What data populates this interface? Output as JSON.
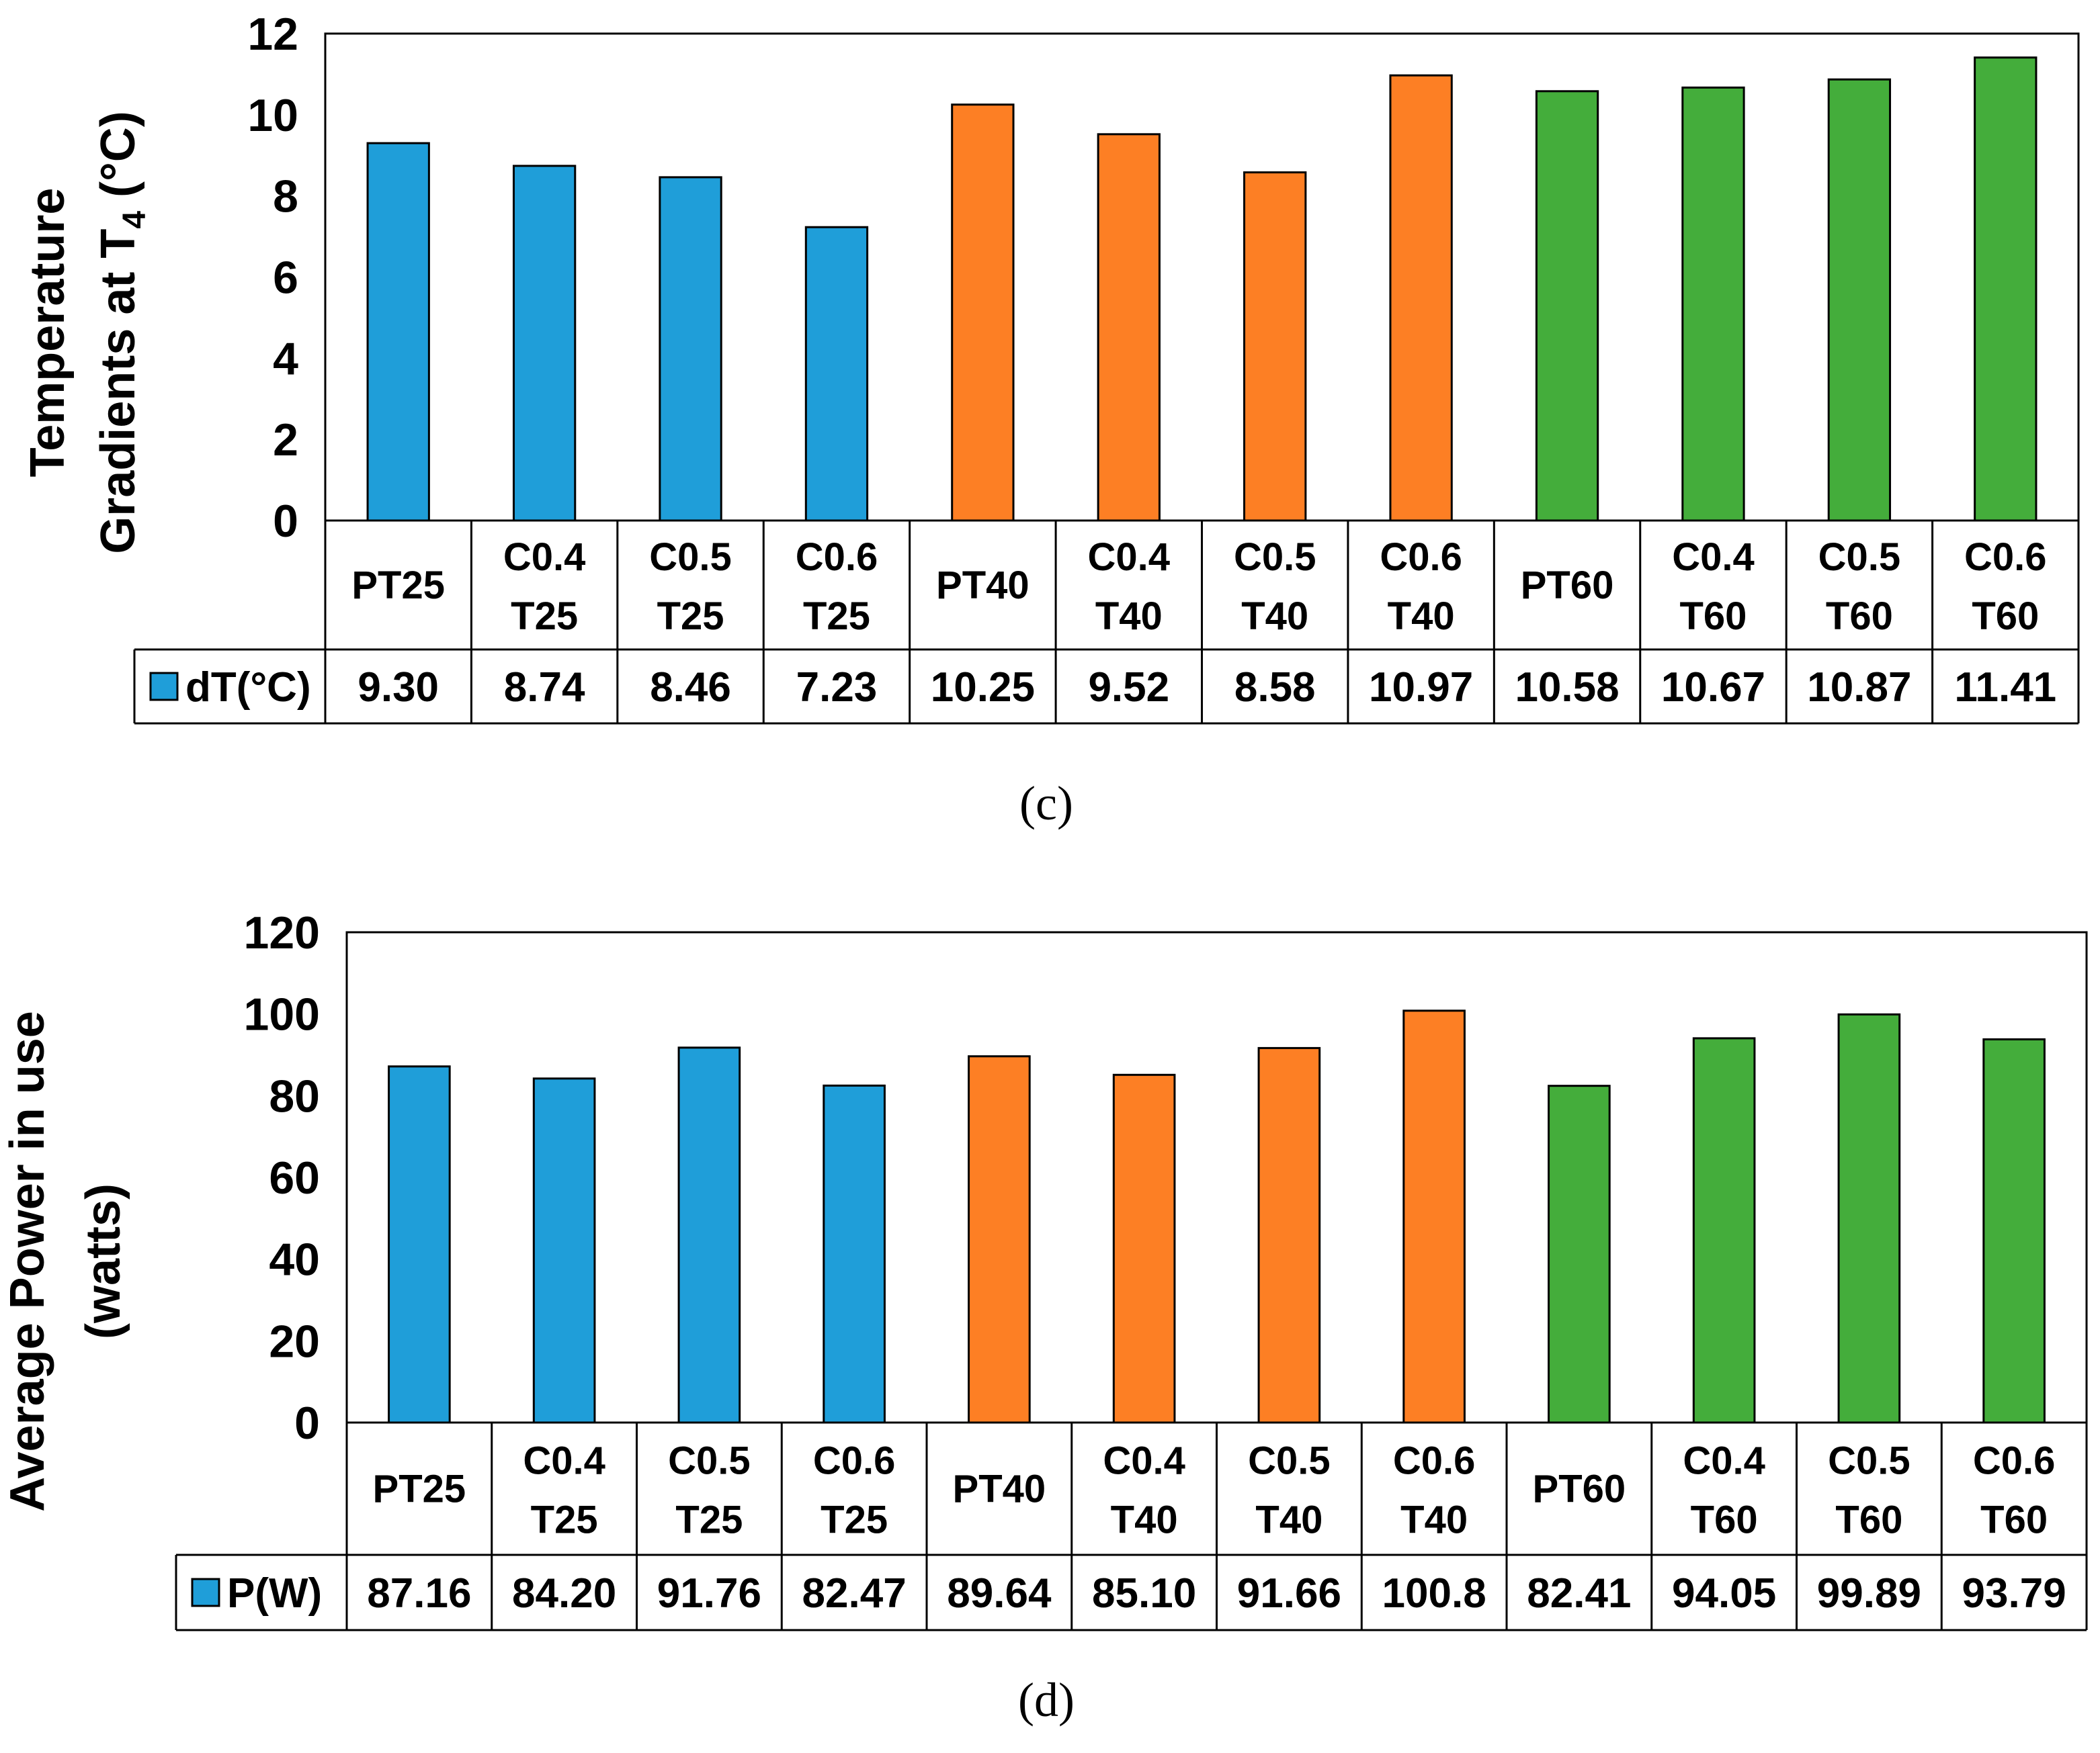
{
  "colors": {
    "blue": "#1f9ed9",
    "orange": "#fd7f24",
    "green": "#44ad3b",
    "stroke": "#000000"
  },
  "chart_data": [
    {
      "type": "bar",
      "caption": "(c)",
      "ylabel_line1": "Temperature",
      "ylabel_line2_prefix": "Gradients at T",
      "ylabel_subscript": "4",
      "ylabel_line2_suffix": " (°C)",
      "ylim": [
        0,
        12
      ],
      "yticks": [
        0,
        2,
        4,
        6,
        8,
        10,
        12
      ],
      "categories": [
        [
          "PT25"
        ],
        [
          "C0.4",
          "T25"
        ],
        [
          "C0.5",
          "T25"
        ],
        [
          "C0.6",
          "T25"
        ],
        [
          "PT40"
        ],
        [
          "C0.4",
          "T40"
        ],
        [
          "C0.5",
          "T40"
        ],
        [
          "C0.6",
          "T40"
        ],
        [
          "PT60"
        ],
        [
          "C0.4",
          "T60"
        ],
        [
          "C0.5",
          "T60"
        ],
        [
          "C0.6",
          "T60"
        ]
      ],
      "series": [
        {
          "name": "dT(°C)",
          "values": [
            9.3,
            8.74,
            8.46,
            7.23,
            10.25,
            9.52,
            8.58,
            10.97,
            10.58,
            10.67,
            10.87,
            11.41
          ]
        }
      ],
      "value_labels": [
        "9.30",
        "8.74",
        "8.46",
        "7.23",
        "10.25",
        "9.52",
        "8.58",
        "10.97",
        "10.58",
        "10.67",
        "10.87",
        "11.41"
      ],
      "bar_colors": [
        "blue",
        "blue",
        "blue",
        "blue",
        "orange",
        "orange",
        "orange",
        "orange",
        "green",
        "green",
        "green",
        "green"
      ]
    },
    {
      "type": "bar",
      "caption": "(d)",
      "ylabel_line1": "Average  Power in use",
      "ylabel_line2": "(watts)",
      "ylim": [
        0,
        120
      ],
      "yticks": [
        0,
        20,
        40,
        60,
        80,
        100,
        120
      ],
      "categories": [
        [
          "PT25"
        ],
        [
          "C0.4",
          "T25"
        ],
        [
          "C0.5",
          "T25"
        ],
        [
          "C0.6",
          "T25"
        ],
        [
          "PT40"
        ],
        [
          "C0.4",
          "T40"
        ],
        [
          "C0.5",
          "T40"
        ],
        [
          "C0.6",
          "T40"
        ],
        [
          "PT60"
        ],
        [
          "C0.4",
          "T60"
        ],
        [
          "C0.5",
          "T60"
        ],
        [
          "C0.6",
          "T60"
        ]
      ],
      "series": [
        {
          "name": "P(W)",
          "values": [
            87.16,
            84.2,
            91.76,
            82.47,
            89.64,
            85.1,
            91.66,
            100.8,
            82.41,
            94.05,
            99.89,
            93.79
          ]
        }
      ],
      "value_labels": [
        "87.16",
        "84.20",
        "91.76",
        "82.47",
        "89.64",
        "85.10",
        "91.66",
        "100.8",
        "82.41",
        "94.05",
        "99.89",
        "93.79"
      ],
      "bar_colors": [
        "blue",
        "blue",
        "blue",
        "blue",
        "orange",
        "orange",
        "orange",
        "orange",
        "green",
        "green",
        "green",
        "green"
      ]
    }
  ]
}
